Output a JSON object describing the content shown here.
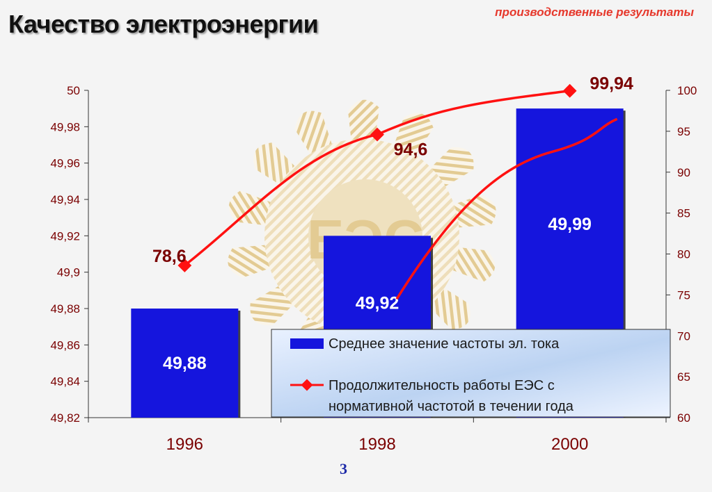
{
  "page": {
    "title": "Качество электроэнергии",
    "subtitle": "производственные результаты",
    "page_number": "3"
  },
  "colors": {
    "bar": "#1515dd",
    "line": "#ff1111",
    "axis_text": "#7a0000",
    "watermark": "#e3c98e"
  },
  "chart_data": {
    "type": "bar",
    "categories": [
      "1996",
      "1998",
      "2000"
    ],
    "series": [
      {
        "name": "Среднее значение частоты эл. тока",
        "type": "bar",
        "axis": "left",
        "values": [
          49.88,
          49.92,
          49.99
        ],
        "labels": [
          "49,88",
          "49,92",
          "49,99"
        ]
      },
      {
        "name": "Продолжительность работы ЕЭС с нормативной частотой в течении года",
        "type": "line",
        "axis": "right",
        "values": [
          78.6,
          94.6,
          99.94
        ],
        "labels": [
          "78,6",
          "94,6",
          "99,94"
        ]
      }
    ],
    "y_left": {
      "range": [
        49.82,
        50
      ],
      "ticks": [
        "49,82",
        "49,84",
        "49,86",
        "49,88",
        "49,9",
        "49,92",
        "49,94",
        "49,96",
        "49,98",
        "50"
      ]
    },
    "y_right": {
      "range": [
        60,
        100
      ],
      "ticks": [
        "60",
        "65",
        "70",
        "75",
        "80",
        "85",
        "90",
        "95",
        "100"
      ]
    },
    "legend": {
      "position": "bottom-right",
      "items": [
        "Среднее значение частоты эл. тока",
        "Продолжительность работы ЕЭС с нормативной частотой в течении года"
      ]
    },
    "watermark_text": "ЕЭС"
  }
}
